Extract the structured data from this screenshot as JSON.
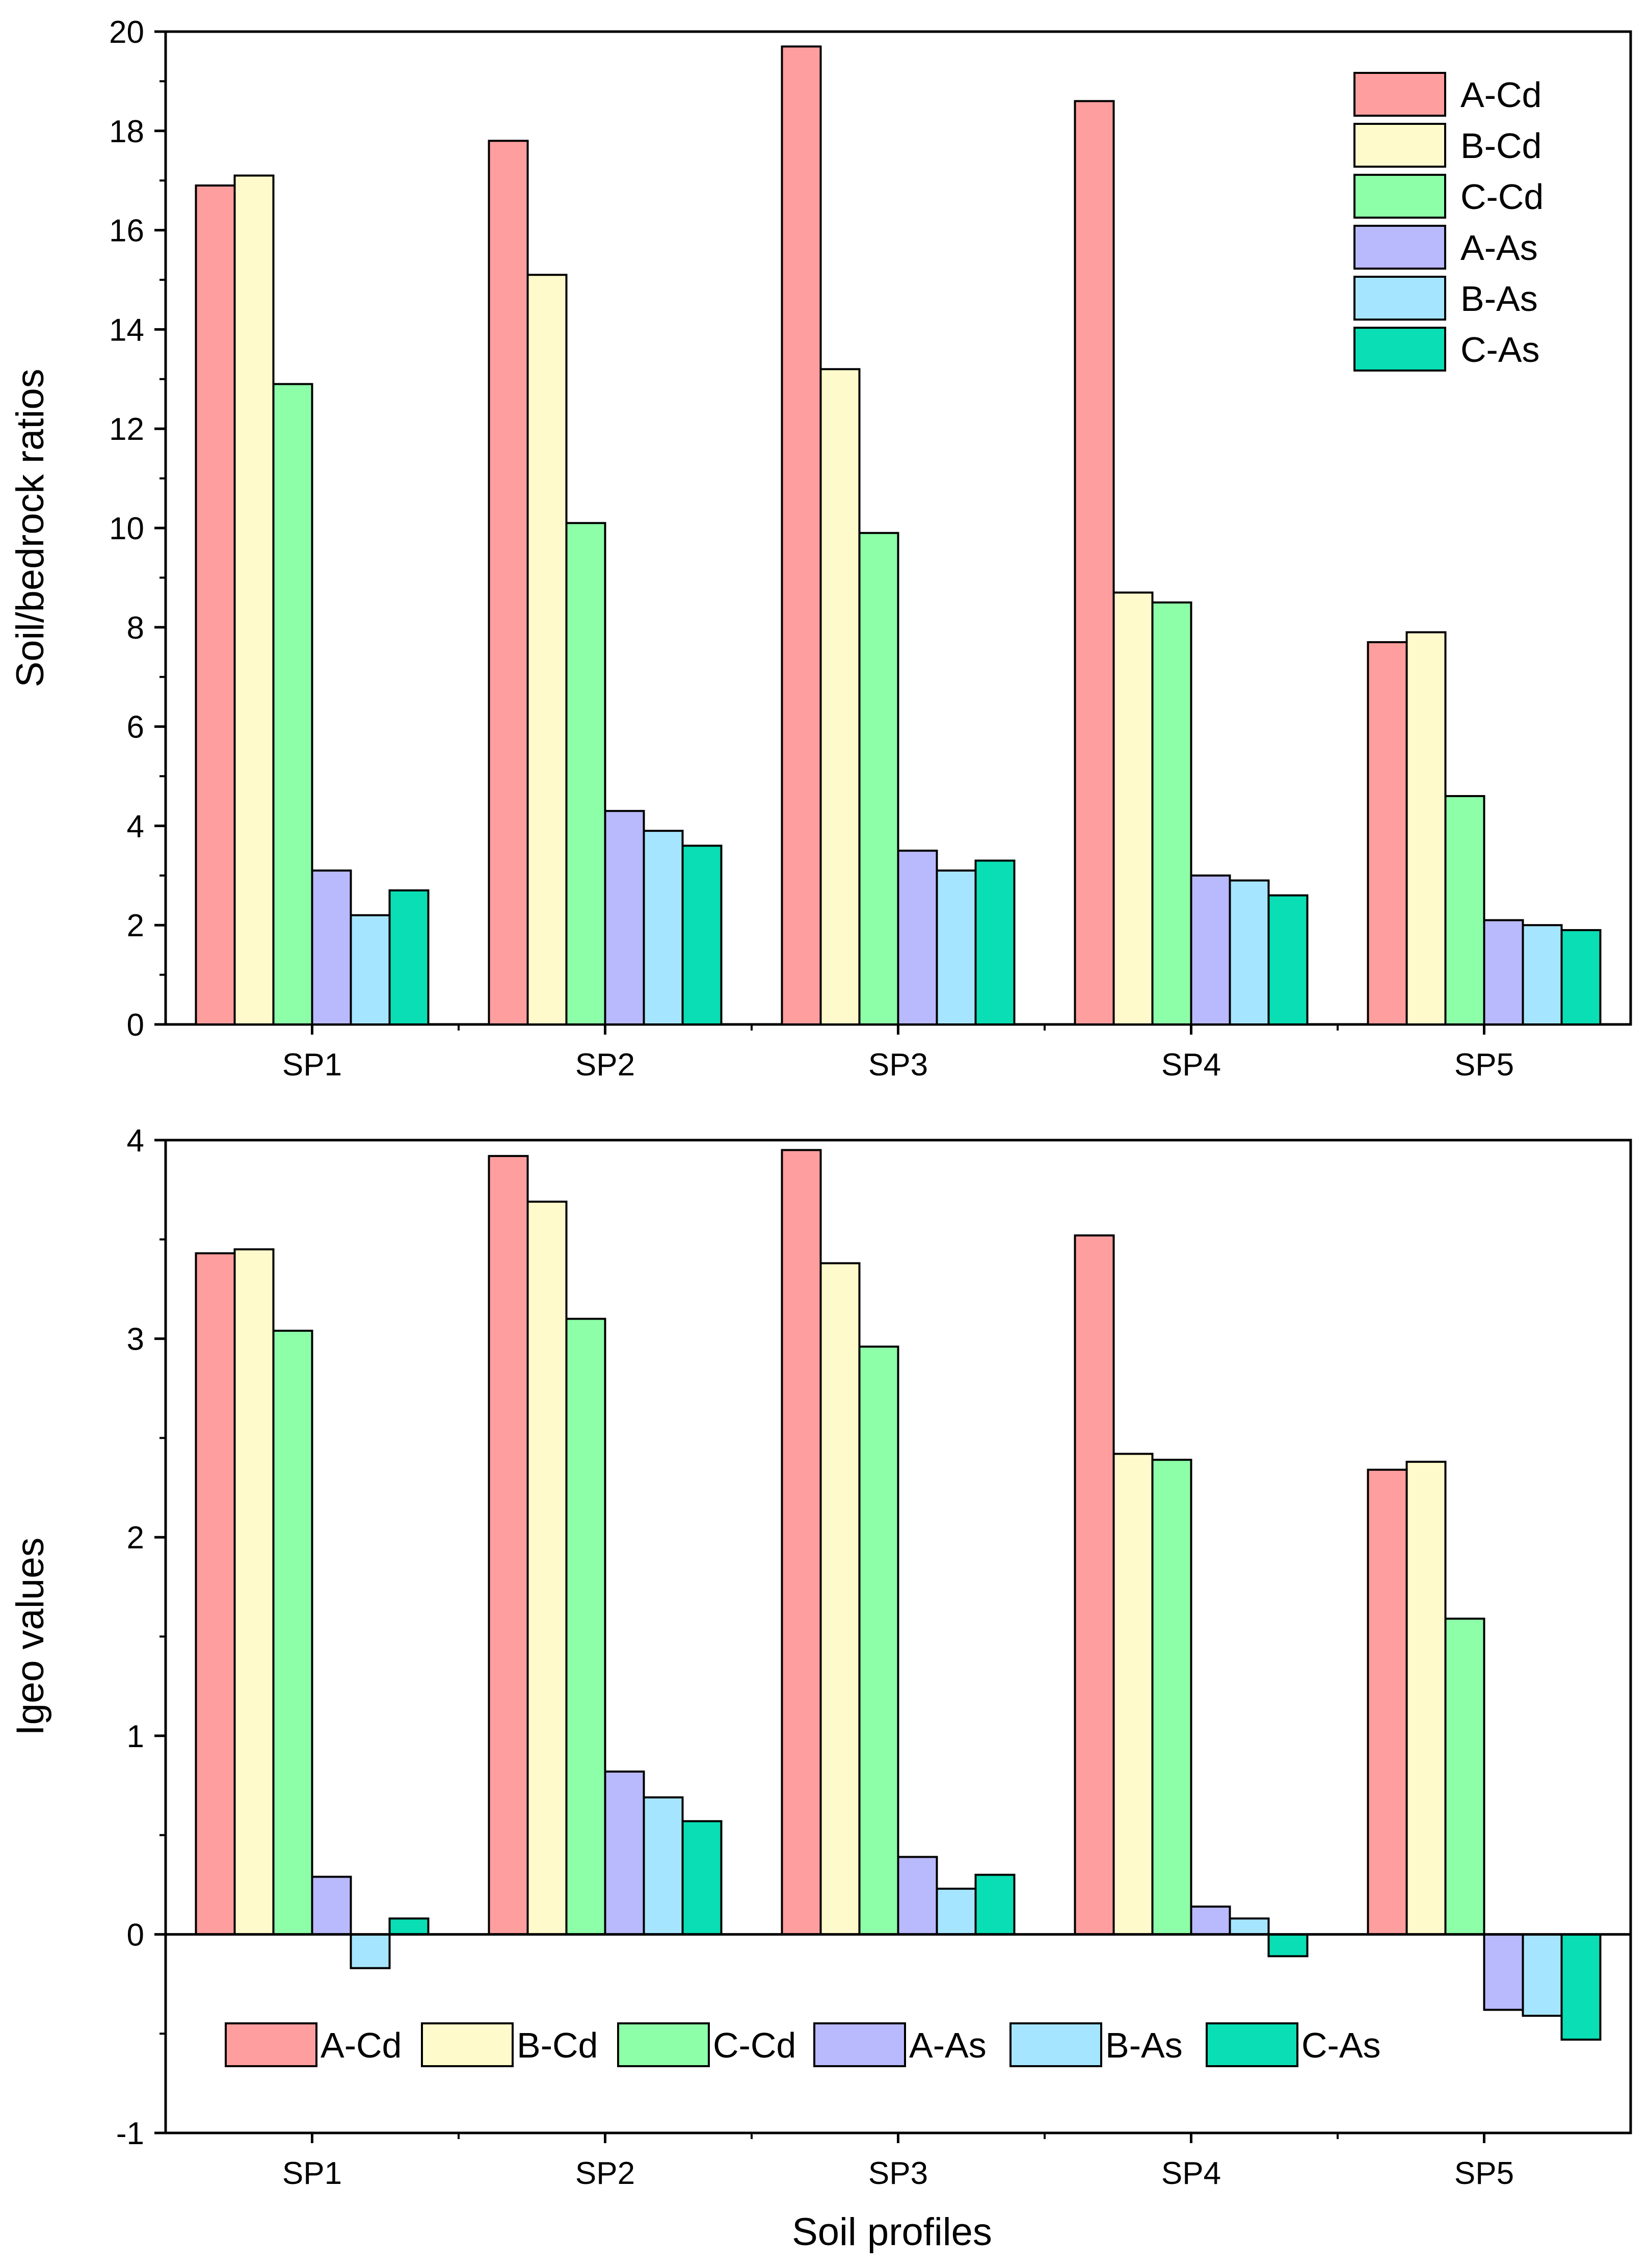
{
  "series_styles": [
    {
      "name": "A-Cd",
      "color": "#FF9E9E"
    },
    {
      "name": "B-Cd",
      "color": "#FFFACB"
    },
    {
      "name": "C-Cd",
      "color": "#8DFFA8"
    },
    {
      "name": "A-As",
      "color": "#B9B9FE"
    },
    {
      "name": "B-As",
      "color": "#A6E5FF"
    },
    {
      "name": "C-As",
      "color": "#0ADEB4"
    }
  ],
  "chart_data": [
    {
      "type": "bar",
      "title": "",
      "xlabel": "",
      "ylabel": "Soil/bedrock ratios",
      "ylim": [
        0,
        20
      ],
      "yticks": [
        0,
        2,
        4,
        6,
        8,
        10,
        12,
        14,
        16,
        18,
        20
      ],
      "ytick_labels": [
        "0",
        "2",
        "4",
        "6",
        "8",
        "10",
        "12",
        "14",
        "16",
        "18",
        "20"
      ],
      "categories": [
        "SP1",
        "SP2",
        "SP3",
        "SP4",
        "SP5"
      ],
      "legend_position": "top-right",
      "series": [
        {
          "name": "A-Cd",
          "values": [
            16.9,
            17.8,
            19.7,
            18.6,
            7.7
          ]
        },
        {
          "name": "B-Cd",
          "values": [
            17.1,
            15.1,
            13.2,
            8.7,
            7.9
          ]
        },
        {
          "name": "C-Cd",
          "values": [
            12.9,
            10.1,
            9.9,
            8.5,
            4.6
          ]
        },
        {
          "name": "A-As",
          "values": [
            3.1,
            4.3,
            3.5,
            3.0,
            2.1
          ]
        },
        {
          "name": "B-As",
          "values": [
            2.2,
            3.9,
            3.1,
            2.9,
            2.0
          ]
        },
        {
          "name": "C-As",
          "values": [
            2.7,
            3.6,
            3.3,
            2.6,
            1.9
          ]
        }
      ]
    },
    {
      "type": "bar",
      "title": "",
      "xlabel": "Soil profiles",
      "ylabel": "Igeo values",
      "ylim": [
        -1,
        4
      ],
      "yticks": [
        -1,
        0,
        1,
        2,
        3,
        4
      ],
      "ytick_labels": [
        "-1",
        "0",
        "1",
        "2",
        "3",
        "4"
      ],
      "categories": [
        "SP1",
        "SP2",
        "SP3",
        "SP4",
        "SP5"
      ],
      "legend_position": "bottom (horizontal)",
      "series": [
        {
          "name": "A-Cd",
          "values": [
            3.43,
            3.92,
            3.95,
            3.52,
            2.34
          ]
        },
        {
          "name": "B-Cd",
          "values": [
            3.45,
            3.69,
            3.38,
            2.42,
            2.38
          ]
        },
        {
          "name": "C-Cd",
          "values": [
            3.04,
            3.1,
            2.96,
            2.39,
            1.59
          ]
        },
        {
          "name": "A-As",
          "values": [
            0.29,
            0.82,
            0.39,
            0.14,
            -0.38
          ]
        },
        {
          "name": "B-As",
          "values": [
            -0.17,
            0.69,
            0.23,
            0.08,
            -0.41
          ]
        },
        {
          "name": "C-As",
          "values": [
            0.08,
            0.57,
            0.3,
            -0.11,
            -0.53
          ]
        }
      ]
    }
  ]
}
